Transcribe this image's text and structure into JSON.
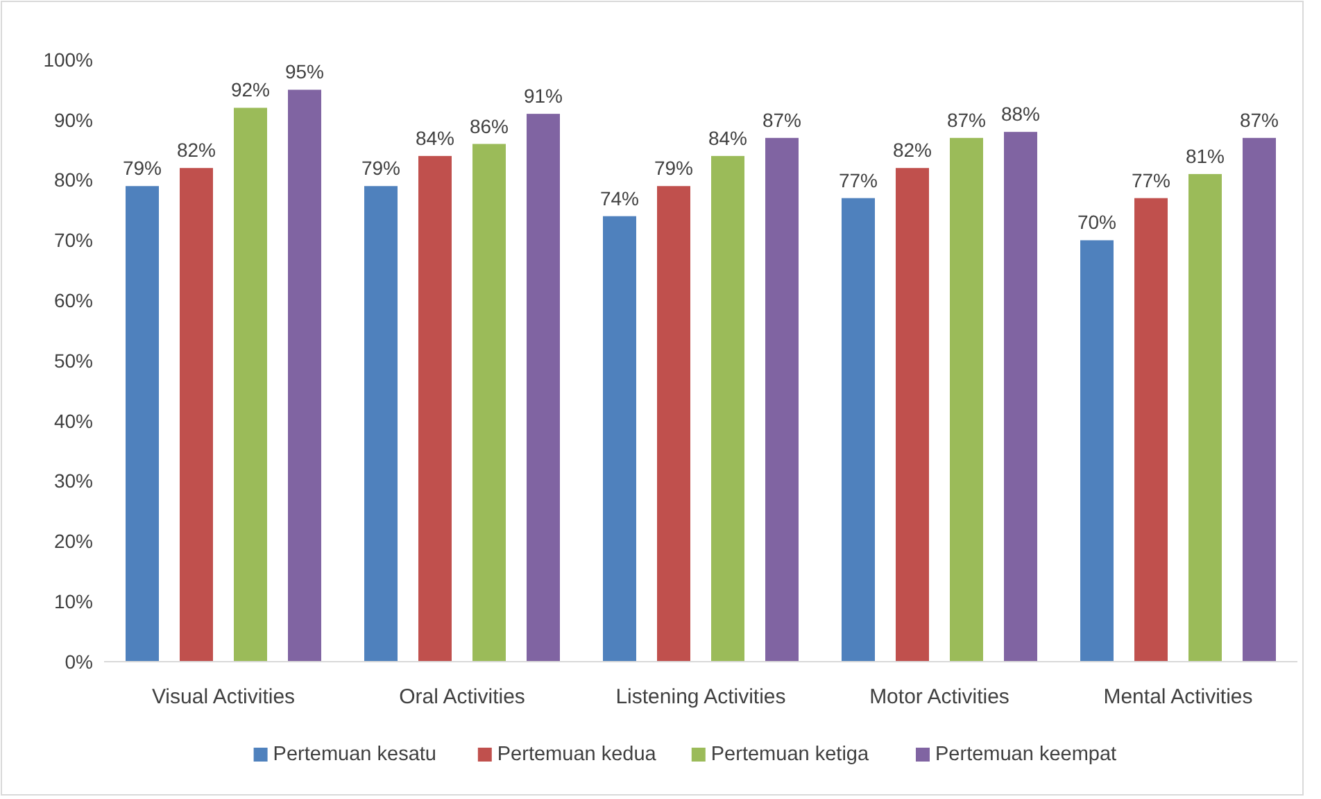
{
  "chart_data": {
    "type": "bar",
    "categories": [
      "Visual Activities",
      "Oral Activities",
      "Listening Activities",
      "Motor Activities",
      "Mental Activities"
    ],
    "series": [
      {
        "name": "Pertemuan kesatu",
        "color": "#4f81bd",
        "values": [
          79,
          79,
          74,
          77,
          70
        ],
        "value_labels": [
          "79%",
          "79%",
          "74%",
          "77%",
          "70%"
        ]
      },
      {
        "name": "Pertemuan kedua",
        "color": "#c0504d",
        "values": [
          82,
          84,
          79,
          82,
          77
        ],
        "value_labels": [
          "82%",
          "84%",
          "79%",
          "82%",
          "77%"
        ]
      },
      {
        "name": "Pertemuan ketiga",
        "color": "#9bbb59",
        "values": [
          92,
          86,
          84,
          87,
          81
        ],
        "value_labels": [
          "92%",
          "86%",
          "84%",
          "87%",
          "81%"
        ]
      },
      {
        "name": "Pertemuan keempat",
        "color": "#8064a2",
        "values": [
          95,
          91,
          87,
          88,
          87
        ],
        "value_labels": [
          "95%",
          "91%",
          "87%",
          "88%",
          "87%"
        ]
      }
    ],
    "ylim": [
      0,
      100
    ],
    "yticks": [
      {
        "value": 0,
        "label": "0%"
      },
      {
        "value": 10,
        "label": "10%"
      },
      {
        "value": 20,
        "label": "20%"
      },
      {
        "value": 30,
        "label": "30%"
      },
      {
        "value": 40,
        "label": "40%"
      },
      {
        "value": 50,
        "label": "50%"
      },
      {
        "value": 60,
        "label": "60%"
      },
      {
        "value": 70,
        "label": "70%"
      },
      {
        "value": 80,
        "label": "80%"
      },
      {
        "value": 90,
        "label": "90%"
      },
      {
        "value": 100,
        "label": "100%"
      }
    ],
    "grid": false,
    "legend": "bottom"
  }
}
